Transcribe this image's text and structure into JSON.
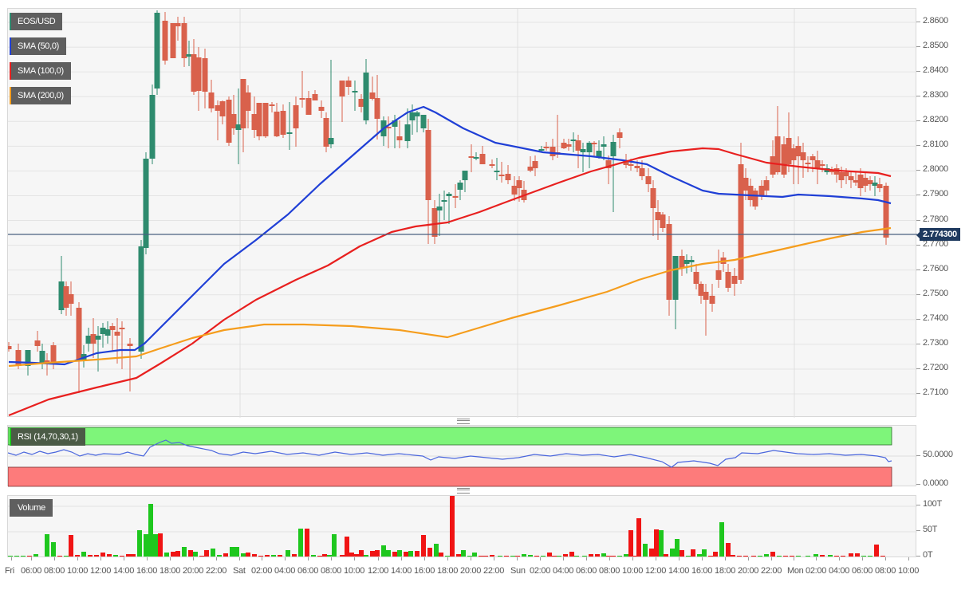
{
  "chart_title": "EOS/USD",
  "legend": {
    "symbol": "EOS/USD",
    "sma50": "SMA (50,0)",
    "sma100": "SMA (100,0)",
    "sma200": "SMA (200,0)",
    "rsi": "RSI (14,70,30,1)",
    "volume": "Volume"
  },
  "colors": {
    "up_candle": "#2e8b6e",
    "down_candle": "#d9614c",
    "sma50": "#1f3fd6",
    "sma100": "#e8201f",
    "sma200": "#f59d1d",
    "rsi_overbought_band": "#7ef57a",
    "rsi_oversold_band": "#fd7b7b",
    "rsi_line": "#4a66dd",
    "volume_up": "#1ec71e",
    "volume_down": "#f01414",
    "current_price_line": "#4a5f80",
    "current_price_tag": "#1f3a5f"
  },
  "current_price": "2.774300",
  "price_axis": [
    "2.8600",
    "2.8500",
    "2.8400",
    "2.8300",
    "2.8200",
    "2.8100",
    "2.8000",
    "2.7900",
    "2.7800",
    "2.7700",
    "2.7600",
    "2.7500",
    "2.7400",
    "2.7300",
    "2.7200",
    "2.7100"
  ],
  "rsi_axis": [
    "50.0000",
    "0.0000"
  ],
  "volume_axis": [
    "100T",
    "50T",
    "0T"
  ],
  "time_axis": [
    "Fri",
    "06:00",
    "08:00",
    "10:00",
    "12:00",
    "14:00",
    "16:00",
    "18:00",
    "20:00",
    "22:00",
    "Sat",
    "02:00",
    "04:00",
    "06:00",
    "08:00",
    "10:00",
    "12:00",
    "14:00",
    "16:00",
    "18:00",
    "20:00",
    "22:00",
    "Sun",
    "02:00",
    "04:00",
    "06:00",
    "08:00",
    "10:00",
    "12:00",
    "14:00",
    "16:00",
    "18:00",
    "20:00",
    "22:00",
    "Mon",
    "02:00",
    "04:00",
    "06:00",
    "08:00",
    "10:00"
  ],
  "chart_data": {
    "type": "candlestick",
    "title": "EOS/USD",
    "interval": "1h",
    "xlabel": "",
    "ylabel": "",
    "ylim": [
      2.7,
      2.865
    ],
    "grid": true,
    "legend_position": "top-left",
    "current_price": 2.7743,
    "candles_ohlc": [
      [
        2.728,
        2.729,
        2.726,
        2.727
      ],
      [
        2.724,
        2.726,
        2.718,
        2.719
      ],
      [
        2.72,
        2.729,
        2.718,
        2.727
      ],
      [
        2.727,
        2.733,
        2.722,
        2.724
      ],
      [
        2.722,
        2.734,
        2.719,
        2.731
      ],
      [
        2.729,
        2.742,
        2.721,
        2.737
      ],
      [
        2.737,
        2.752,
        2.733,
        2.751
      ],
      [
        2.751,
        2.767,
        2.751,
        2.763
      ],
      [
        2.763,
        2.763,
        2.738,
        2.745
      ],
      [
        2.745,
        2.752,
        2.74,
        2.745
      ],
      [
        2.745,
        2.751,
        2.711,
        2.726
      ],
      [
        2.726,
        2.73,
        2.721,
        2.727
      ],
      [
        2.727,
        2.735,
        2.716,
        2.734
      ],
      [
        2.734,
        2.738,
        2.722,
        2.728
      ],
      [
        2.729,
        2.737,
        2.721,
        2.736
      ],
      [
        2.736,
        2.738,
        2.723,
        2.735
      ],
      [
        2.736,
        2.74,
        2.728,
        2.736
      ],
      [
        2.736,
        2.739,
        2.715,
        2.733
      ],
      [
        2.733,
        2.735,
        2.71,
        2.729
      ],
      [
        2.729,
        2.771,
        2.729,
        2.77
      ],
      [
        2.77,
        2.806,
        2.768,
        2.805
      ],
      [
        2.805,
        2.834,
        2.803,
        2.833
      ],
      [
        2.833,
        2.864,
        2.831,
        2.864
      ],
      [
        2.859,
        2.86,
        2.826,
        2.829
      ],
      [
        2.859,
        2.859,
        2.83,
        2.836
      ],
      [
        2.846,
        2.861,
        2.838,
        2.846
      ],
      [
        2.859,
        2.861,
        2.834,
        2.836
      ],
      [
        2.836,
        2.85,
        2.834,
        2.838
      ],
      [
        2.846,
        2.848,
        2.826,
        2.826
      ],
      [
        2.841,
        2.843,
        2.819,
        2.826
      ],
      [
        2.841,
        2.841,
        2.823,
        2.827
      ],
      [
        2.827,
        2.83,
        2.813,
        2.814
      ],
      [
        2.828,
        2.833,
        2.809,
        2.828
      ],
      [
        2.82,
        2.83,
        2.813,
        2.82
      ],
      [
        2.826,
        2.829,
        2.808,
        2.828
      ],
      [
        2.825,
        2.827,
        2.81,
        2.811
      ],
      [
        2.818,
        2.831,
        2.803,
        2.81
      ],
      [
        2.806,
        2.822,
        2.804,
        2.808
      ],
      [
        2.823,
        2.822,
        2.812,
        2.826
      ],
      [
        2.831,
        2.842,
        2.815,
        2.831
      ],
      [
        2.812,
        2.835,
        2.81,
        2.823
      ],
      [
        2.818,
        2.822,
        2.809,
        2.811
      ],
      [
        2.815,
        2.821,
        2.812,
        2.826
      ],
      [
        2.826,
        2.826,
        2.82,
        2.825
      ],
      [
        2.826,
        2.828,
        2.823,
        2.821
      ],
      [
        2.826,
        2.829,
        2.814,
        2.826
      ],
      [
        2.827,
        2.828,
        2.811,
        2.813
      ],
      [
        2.81,
        2.812,
        2.799,
        2.815
      ],
      [
        2.813,
        2.828,
        2.813,
        2.823
      ],
      [
        2.83,
        2.833,
        2.818,
        2.83
      ],
      [
        2.831,
        2.837,
        2.828,
        2.831
      ],
      [
        2.823,
        2.825,
        2.809,
        2.823
      ],
      [
        2.805,
        2.823,
        2.806,
        2.822
      ],
      [
        2.808,
        2.838,
        2.807,
        2.832
      ],
      [
        2.832,
        2.832,
        2.823,
        2.829
      ],
      [
        2.82,
        2.826,
        2.813,
        2.826
      ]
    ],
    "sma_series": [
      {
        "name": "SMA (50,0)",
        "color": "#1f3fd6"
      },
      {
        "name": "SMA (100,0)",
        "color": "#e8201f"
      },
      {
        "name": "SMA (200,0)",
        "color": "#f59d1d"
      }
    ],
    "rsi": {
      "name": "RSI (14,70,30,1)",
      "overbought": 70,
      "oversold": 30,
      "range": [
        0,
        100
      ],
      "last": 38
    },
    "volume": {
      "name": "Volume",
      "range": [
        0,
        "100T"
      ],
      "peak": "~115T (Sat 18:00)",
      "last": "~22T"
    }
  }
}
